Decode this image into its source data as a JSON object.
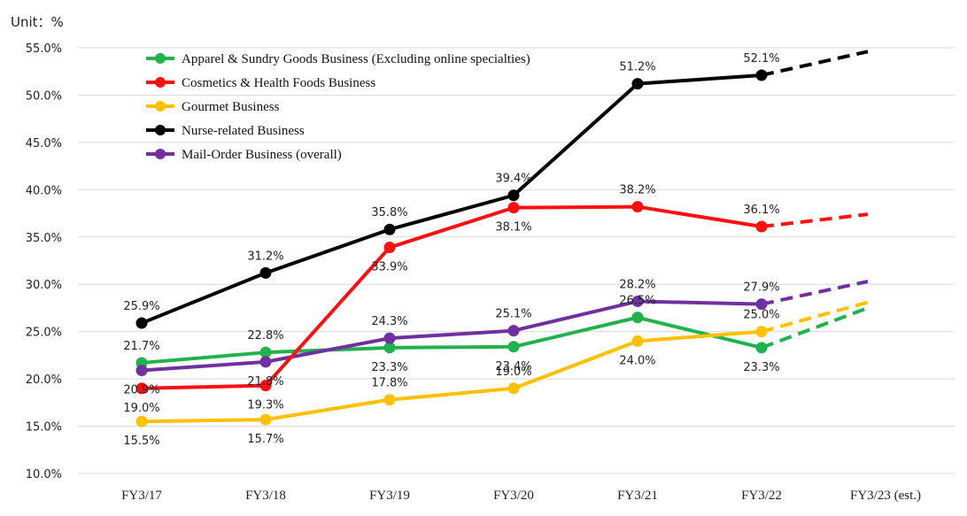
{
  "unit_label": "Unit：%",
  "chart_data": {
    "type": "line",
    "title": "",
    "xlabel": "",
    "ylabel": "",
    "ylim": [
      10.0,
      55.0
    ],
    "yticks": [
      "10.0%",
      "15.0%",
      "20.0%",
      "25.0%",
      "30.0%",
      "35.0%",
      "40.0%",
      "45.0%",
      "50.0%",
      "55.0%"
    ],
    "categories": [
      "FY3/17",
      "FY3/18",
      "FY3/19",
      "FY3/20",
      "FY3/21",
      "FY3/22",
      "FY3/23 (est.)"
    ],
    "grid": true,
    "legend_position": "top-left",
    "series": [
      {
        "name": "Apparel & Sundry Goods Business (Excluding online specialties)",
        "color": "#22b24c",
        "values": [
          21.7,
          22.8,
          23.3,
          23.4,
          26.5,
          23.3,
          27.5
        ],
        "labels": [
          "21.7%",
          "22.8%",
          "23.3%",
          "23.4%",
          "26.5%",
          "23.3%",
          null
        ],
        "estimated_last": true
      },
      {
        "name": "Cosmetics & Health Foods Business",
        "color": "#ff1010",
        "values": [
          19.0,
          19.3,
          33.9,
          38.1,
          38.2,
          36.1,
          37.4
        ],
        "labels": [
          "19.0%",
          "19.3%",
          "33.9%",
          "38.1%",
          "38.2%",
          "36.1%",
          null
        ],
        "estimated_last": true
      },
      {
        "name": "Gourmet Business",
        "color": "#ffc000",
        "values": [
          15.5,
          15.7,
          17.8,
          19.0,
          24.0,
          25.0,
          28.1
        ],
        "labels": [
          "15.5%",
          "15.7%",
          "17.8%",
          "19.0%",
          "24.0%",
          "25.0%",
          null
        ],
        "estimated_last": true
      },
      {
        "name": "Nurse-related Business",
        "color": "#000000",
        "values": [
          25.9,
          31.2,
          35.8,
          39.4,
          51.2,
          52.1,
          54.6
        ],
        "labels": [
          "25.9%",
          "31.2%",
          "35.8%",
          "39.4%",
          "51.2%",
          "52.1%",
          null
        ],
        "estimated_last": true
      },
      {
        "name": "Mail-Order Business (overall)",
        "color": "#7030a0",
        "values": [
          20.9,
          21.8,
          24.3,
          25.1,
          28.2,
          27.9,
          30.3
        ],
        "labels": [
          "20.9%",
          "21.8%",
          "24.3%",
          "25.1%",
          "28.2%",
          "27.9%",
          null
        ],
        "estimated_last": true
      }
    ]
  }
}
